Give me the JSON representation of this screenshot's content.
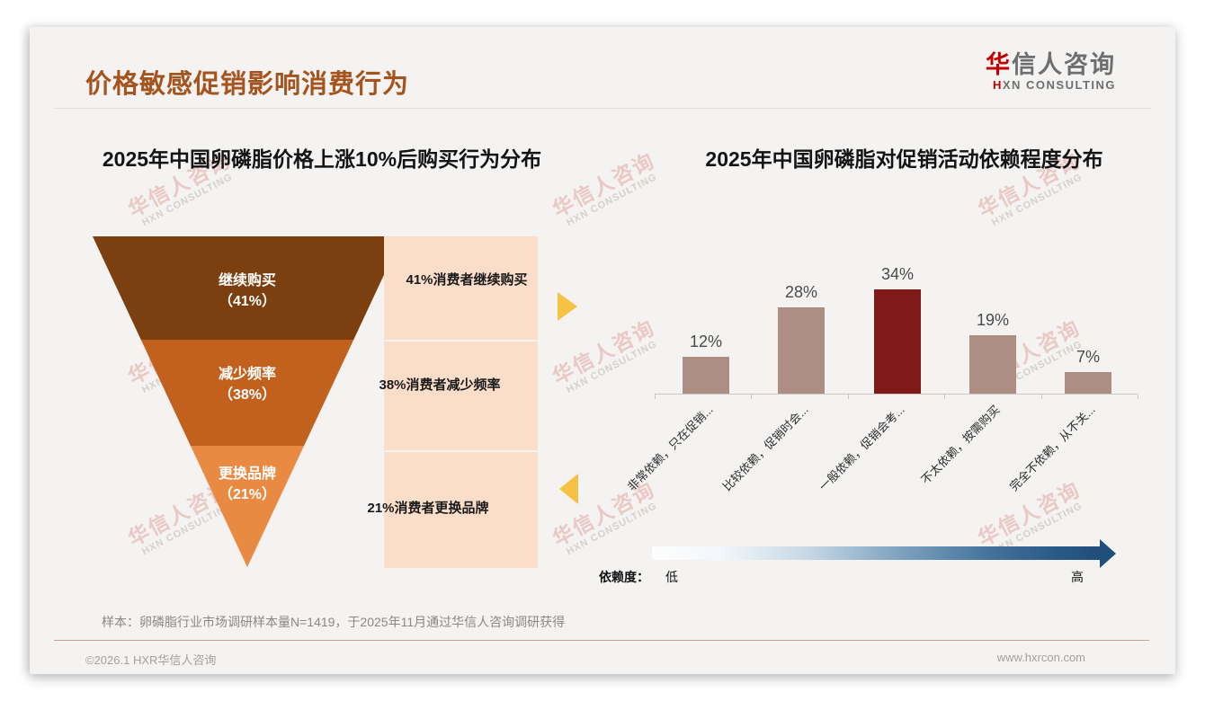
{
  "header": {
    "title": "价格敏感促销影响消费行为",
    "logo": {
      "cn_accent": "华",
      "cn_rest": "信人咨询",
      "en_accent": "H",
      "en_rest": "XN CONSULTING"
    }
  },
  "watermark": {
    "cn": "华信人咨询",
    "en": "HXN CONSULTING"
  },
  "left_panel": {
    "title": "2025年中国卵磷脂价格上涨10%后购买行为分布"
  },
  "right_panel": {
    "title": "2025年中国卵磷脂对促销活动依赖程度分布",
    "dependency_axis": {
      "label": "依赖度：",
      "low": "低",
      "high": "高"
    }
  },
  "footnote": "样本：卵磷脂行业市场调研样本量N=1419，于2025年11月通过华信人咨询调研获得",
  "footer": {
    "left": "©2026.1 HXR华信人咨询",
    "right": "www.hxrcon.com"
  },
  "colors": {
    "title_brown": "#A4541E",
    "logo_red": "#C00000",
    "panel_peach": "#FADECA",
    "arrow_gold": "#F6C244",
    "bar_default": "#AC8E85",
    "bar_highlight": "#7F1A18",
    "gradient_blue": "#1F4E79"
  },
  "chart_data": [
    {
      "type": "funnel",
      "title": "2025年中国卵磷脂价格上涨10%后购买行为分布",
      "segments": [
        {
          "label": "继续购买",
          "value": 41,
          "value_label": "（41%）",
          "annotation": "41%消费者继续购买",
          "color": "#7B3F10"
        },
        {
          "label": "减少频率",
          "value": 38,
          "value_label": "（38%）",
          "annotation": "38%消费者减少频率",
          "color": "#C2611E"
        },
        {
          "label": "更换品牌",
          "value": 21,
          "value_label": "（21%）",
          "annotation": "21%消费者更换品牌",
          "color": "#E98A42"
        }
      ]
    },
    {
      "type": "bar",
      "title": "2025年中国卵磷脂对促销活动依赖程度分布",
      "categories": [
        "非常依赖，只在促销...",
        "比较依赖，促销时会...",
        "一般依赖，促销会考...",
        "不太依赖，按需购买",
        "完全不依赖，从不关..."
      ],
      "values": [
        12,
        28,
        34,
        19,
        7
      ],
      "value_labels": [
        "12%",
        "28%",
        "34%",
        "19%",
        "7%"
      ],
      "highlight_index": 2,
      "ylim": [
        0,
        40
      ],
      "grid": false,
      "xlabel": "",
      "ylabel": "",
      "axis_annotation": {
        "label": "依赖度：",
        "low": "低",
        "high": "高"
      }
    }
  ]
}
